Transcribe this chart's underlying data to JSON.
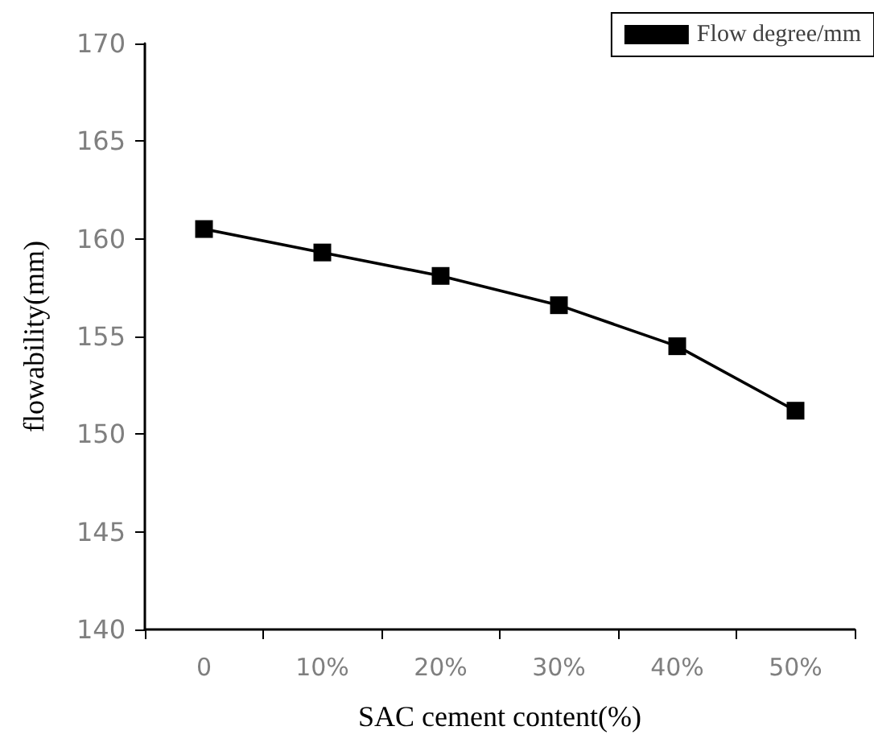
{
  "chart_data": {
    "type": "line",
    "xlabel": "SAC cement content(%)",
    "ylabel": "flowability(mm)",
    "categories": [
      "0",
      "10%",
      "20%",
      "30%",
      "40%",
      "50%"
    ],
    "series": [
      {
        "name": "Flow degree/mm",
        "color": "#000000",
        "values": [
          160.5,
          159.3,
          158.1,
          156.6,
          154.5,
          151.2
        ]
      }
    ],
    "ylim": [
      140,
      170
    ],
    "yticks": [
      140,
      145,
      150,
      155,
      160,
      165,
      170
    ],
    "grid": false,
    "legend": "top right",
    "marker": "square",
    "line_style": "solid"
  }
}
